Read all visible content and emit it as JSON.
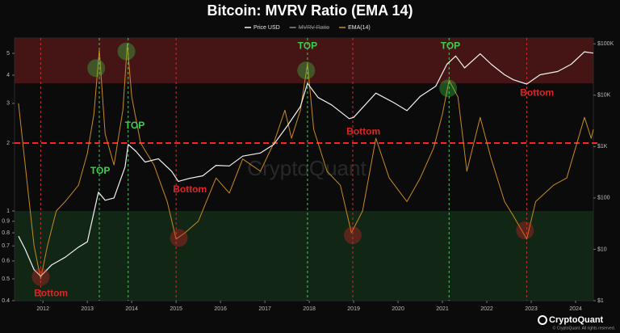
{
  "chart_data": {
    "type": "line",
    "title": "Bitcoin: MVRV Ratio (EMA 14)",
    "watermark": "CryptoQuant",
    "brand": "CryptoQuant",
    "copyright": "© CryptoQuant. All rights reserved.",
    "xlim": [
      2011.36,
      2024.4
    ],
    "xticks": [
      2012,
      2013,
      2014,
      2015,
      2016,
      2017,
      2018,
      2019,
      2020,
      2021,
      2022,
      2023,
      2024
    ],
    "ylim": [
      0.4,
      5.85
    ],
    "yscale": "log",
    "yticks": [
      0.4,
      0.5,
      0.6,
      0.7,
      0.8,
      0.9,
      1,
      2,
      3,
      4,
      5
    ],
    "y2lim": [
      1,
      130000
    ],
    "y2scale": "log",
    "y2ticks": [
      {
        "value": 1,
        "label": "$1"
      },
      {
        "value": 10,
        "label": "$10"
      },
      {
        "value": 100,
        "label": "$100"
      },
      {
        "value": 1000,
        "label": "$1K"
      },
      {
        "value": 10000,
        "label": "$10K"
      },
      {
        "value": 100000,
        "label": "$100K"
      }
    ],
    "zones": [
      {
        "from": 3.68,
        "to": 5.85,
        "color": "#5a1a1a"
      },
      {
        "from": 0.4,
        "to": 1,
        "color": "#14301a"
      }
    ],
    "threshold": {
      "value": 2,
      "color": "#ff2222"
    },
    "top_lines": {
      "color": "#3ccf4e",
      "x": [
        2013.27,
        2013.92,
        2017.96,
        2021.15
      ]
    },
    "bottom_lines": {
      "color": "#e02424",
      "x": [
        2011.95,
        2015.0,
        2018.98,
        2022.9
      ]
    },
    "highlights": [
      {
        "x": 2013.2,
        "y": 4.3,
        "color": "#3ccf4e"
      },
      {
        "x": 2013.88,
        "y": 5.1,
        "color": "#3ccf4e"
      },
      {
        "x": 2017.93,
        "y": 4.2,
        "color": "#3ccf4e"
      },
      {
        "x": 2021.13,
        "y": 3.5,
        "color": "#3ccf4e"
      },
      {
        "x": 2011.95,
        "y": 0.51,
        "color": "#e02424"
      },
      {
        "x": 2015.06,
        "y": 0.76,
        "color": "#e02424"
      },
      {
        "x": 2018.98,
        "y": 0.78,
        "color": "#e02424"
      },
      {
        "x": 2022.86,
        "y": 0.82,
        "color": "#e02424"
      }
    ],
    "annotations": [
      {
        "text": "TOP",
        "x": 2013.29,
        "y": 1.5,
        "color": "#3ccf4e"
      },
      {
        "text": "TOP",
        "x": 2014.07,
        "y": 2.38,
        "color": "#3ccf4e"
      },
      {
        "text": "TOP",
        "x": 2017.96,
        "y": 5.38,
        "color": "#3ccf4e"
      },
      {
        "text": "TOP",
        "x": 2021.18,
        "y": 5.38,
        "color": "#3ccf4e"
      },
      {
        "text": "Bottom",
        "x": 2012.18,
        "y": 0.43,
        "color": "#e02424"
      },
      {
        "text": "Bottom",
        "x": 2015.31,
        "y": 1.24,
        "color": "#e02424"
      },
      {
        "text": "Bottom",
        "x": 2019.22,
        "y": 2.24,
        "color": "#e02424"
      },
      {
        "text": "Bottom",
        "x": 2023.13,
        "y": 3.33,
        "color": "#e02424"
      }
    ],
    "series": [
      {
        "name": "Price USD",
        "color": "#f2f2f2",
        "axis": "y2",
        "x": [
          2011.45,
          2011.6,
          2011.8,
          2011.95,
          2012.2,
          2012.5,
          2012.8,
          2013.0,
          2013.25,
          2013.4,
          2013.6,
          2013.85,
          2013.92,
          2014.1,
          2014.3,
          2014.6,
          2014.9,
          2015.05,
          2015.3,
          2015.6,
          2015.9,
          2016.2,
          2016.5,
          2016.9,
          2017.2,
          2017.5,
          2017.8,
          2017.96,
          2018.2,
          2018.5,
          2018.9,
          2019.0,
          2019.5,
          2019.9,
          2020.2,
          2020.5,
          2020.85,
          2021.1,
          2021.3,
          2021.5,
          2021.85,
          2022.1,
          2022.4,
          2022.6,
          2022.9,
          2023.2,
          2023.6,
          2023.9,
          2024.2,
          2024.4
        ],
        "values": [
          18,
          10,
          4,
          3,
          5,
          7,
          11,
          14,
          130,
          90,
          100,
          400,
          1100,
          800,
          500,
          580,
          330,
          210,
          240,
          270,
          430,
          420,
          650,
          750,
          1100,
          2500,
          6000,
          17000,
          9000,
          6500,
          3500,
          3700,
          11000,
          7200,
          5000,
          9500,
          15000,
          40000,
          58000,
          34000,
          64000,
          40000,
          25000,
          20000,
          16500,
          25000,
          29000,
          40000,
          70000,
          66000
        ]
      },
      {
        "name": "MVRV Ratio",
        "color": "#8a8a8a",
        "hidden": true
      },
      {
        "name": "EMA(14)",
        "color": "#c98a1e",
        "x": [
          2011.45,
          2011.6,
          2011.8,
          2011.95,
          2012.1,
          2012.3,
          2012.5,
          2012.8,
          2013.0,
          2013.15,
          2013.27,
          2013.4,
          2013.6,
          2013.8,
          2013.9,
          2014.0,
          2014.2,
          2014.5,
          2014.8,
          2015.0,
          2015.2,
          2015.5,
          2015.9,
          2016.2,
          2016.5,
          2016.9,
          2017.2,
          2017.45,
          2017.6,
          2017.8,
          2017.96,
          2018.1,
          2018.4,
          2018.7,
          2018.95,
          2019.2,
          2019.5,
          2019.8,
          2020.2,
          2020.5,
          2020.8,
          2021.0,
          2021.15,
          2021.35,
          2021.55,
          2021.85,
          2022.1,
          2022.4,
          2022.6,
          2022.9,
          2023.1,
          2023.5,
          2023.8,
          2024.2,
          2024.35,
          2024.4
        ],
        "values": [
          3.0,
          1.6,
          0.7,
          0.5,
          0.7,
          1.0,
          1.1,
          1.3,
          1.8,
          2.7,
          5.2,
          2.2,
          1.6,
          2.8,
          5.5,
          3.2,
          2.0,
          1.6,
          1.1,
          0.75,
          0.8,
          0.9,
          1.4,
          1.2,
          1.7,
          1.5,
          2.0,
          2.8,
          2.1,
          2.8,
          4.5,
          2.3,
          1.5,
          1.3,
          0.8,
          1.0,
          2.1,
          1.4,
          1.1,
          1.4,
          1.9,
          2.7,
          3.8,
          3.2,
          1.5,
          2.6,
          1.7,
          1.1,
          0.95,
          0.75,
          1.1,
          1.3,
          1.4,
          2.6,
          2.1,
          2.3
        ]
      }
    ]
  }
}
